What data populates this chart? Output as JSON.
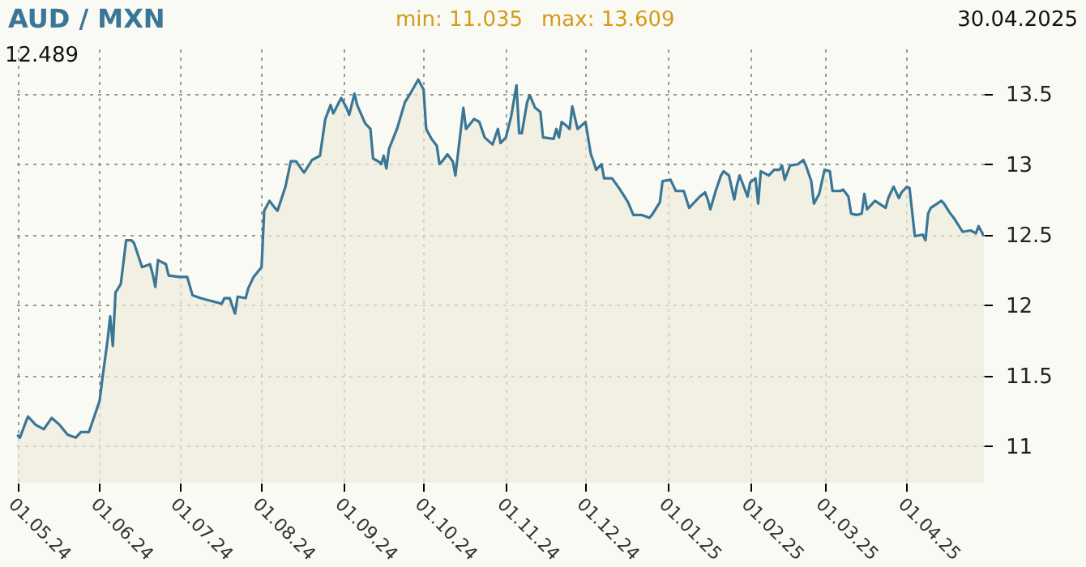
{
  "chart_data": {
    "type": "area",
    "title": "AUD / MXN",
    "annotations": [
      "min: 11.035",
      "max: 13.609",
      "30.04.2025",
      "12.489"
    ],
    "x": [
      "2024-05-01",
      "2024-05-02",
      "2024-05-05",
      "2024-05-08",
      "2024-05-11",
      "2024-05-14",
      "2024-05-17",
      "2024-05-20",
      "2024-05-23",
      "2024-05-25",
      "2024-05-28",
      "2024-05-30",
      "2024-06-01",
      "2024-06-02",
      "2024-06-04",
      "2024-06-05",
      "2024-06-06",
      "2024-06-07",
      "2024-06-09",
      "2024-06-11",
      "2024-06-13",
      "2024-06-14",
      "2024-06-17",
      "2024-06-20",
      "2024-06-21",
      "2024-06-22",
      "2024-06-23",
      "2024-06-26",
      "2024-06-27",
      "2024-07-01",
      "2024-07-04",
      "2024-07-06",
      "2024-07-09",
      "2024-07-13",
      "2024-07-17",
      "2024-07-18",
      "2024-07-20",
      "2024-07-22",
      "2024-07-23",
      "2024-07-26",
      "2024-07-27",
      "2024-07-29",
      "2024-08-01",
      "2024-08-02",
      "2024-08-04",
      "2024-08-06",
      "2024-08-07",
      "2024-08-10",
      "2024-08-12",
      "2024-08-14",
      "2024-08-17",
      "2024-08-20",
      "2024-08-23",
      "2024-08-25",
      "2024-08-27",
      "2024-08-28",
      "2024-08-31",
      "2024-09-02",
      "2024-09-03",
      "2024-09-05",
      "2024-09-06",
      "2024-09-09",
      "2024-09-11",
      "2024-09-12",
      "2024-09-14",
      "2024-09-15",
      "2024-09-16",
      "2024-09-17",
      "2024-09-18",
      "2024-09-21",
      "2024-09-24",
      "2024-09-26",
      "2024-09-29",
      "2024-10-01",
      "2024-10-02",
      "2024-10-04",
      "2024-10-06",
      "2024-10-07",
      "2024-10-08",
      "2024-10-10",
      "2024-10-12",
      "2024-10-13",
      "2024-10-16",
      "2024-10-17",
      "2024-10-20",
      "2024-10-22",
      "2024-10-24",
      "2024-10-27",
      "2024-10-29",
      "2024-10-30",
      "2024-11-01",
      "2024-11-03",
      "2024-11-05",
      "2024-11-06",
      "2024-11-07",
      "2024-11-09",
      "2024-11-10",
      "2024-11-12",
      "2024-11-14",
      "2024-11-15",
      "2024-11-19",
      "2024-11-20",
      "2024-11-21",
      "2024-11-22",
      "2024-11-24",
      "2024-11-25",
      "2024-11-26",
      "2024-11-28",
      "2024-12-01",
      "2024-12-03",
      "2024-12-04",
      "2024-12-05",
      "2024-12-07",
      "2024-12-08",
      "2024-12-11",
      "2024-12-14",
      "2024-12-17",
      "2024-12-19",
      "2024-12-22",
      "2024-12-25",
      "2024-12-26",
      "2024-12-29",
      "2024-12-30",
      "2025-01-02",
      "2025-01-04",
      "2025-01-07",
      "2025-01-09",
      "2025-01-13",
      "2025-01-15",
      "2025-01-16",
      "2025-01-17",
      "2025-01-19",
      "2025-01-21",
      "2025-01-22",
      "2025-01-24",
      "2025-01-26",
      "2025-01-27",
      "2025-01-28",
      "2025-01-31",
      "2025-02-01",
      "2025-02-03",
      "2025-02-04",
      "2025-02-05",
      "2025-02-08",
      "2025-02-10",
      "2025-02-12",
      "2025-02-13",
      "2025-02-14",
      "2025-02-16",
      "2025-02-19",
      "2025-02-21",
      "2025-02-22",
      "2025-02-24",
      "2025-02-25",
      "2025-02-27",
      "2025-03-01",
      "2025-03-03",
      "2025-03-04",
      "2025-03-07",
      "2025-03-08",
      "2025-03-10",
      "2025-03-11",
      "2025-03-13",
      "2025-03-15",
      "2025-03-16",
      "2025-03-17",
      "2025-03-20",
      "2025-03-24",
      "2025-03-25",
      "2025-03-27",
      "2025-03-29",
      "2025-03-30",
      "2025-04-01",
      "2025-04-02",
      "2025-04-04",
      "2025-04-07",
      "2025-04-08",
      "2025-04-09",
      "2025-04-10",
      "2025-04-14",
      "2025-04-15",
      "2025-04-17",
      "2025-04-19",
      "2025-04-22",
      "2025-04-25",
      "2025-04-27",
      "2025-04-28",
      "2025-04-30"
    ],
    "series": [
      {
        "color": "#3a7696",
        "values": [
          11.08,
          11.06,
          11.21,
          11.15,
          11.12,
          11.2,
          11.15,
          11.08,
          11.06,
          11.1,
          11.1,
          11.21,
          11.32,
          11.47,
          11.75,
          11.92,
          11.71,
          12.09,
          12.15,
          12.46,
          12.46,
          12.44,
          12.27,
          12.29,
          12.22,
          12.13,
          12.32,
          12.29,
          12.21,
          12.2,
          12.2,
          12.07,
          12.05,
          12.03,
          12.01,
          12.05,
          12.05,
          11.94,
          12.06,
          12.05,
          12.12,
          12.2,
          12.27,
          12.67,
          12.74,
          12.69,
          12.67,
          12.84,
          13.02,
          13.02,
          12.94,
          13.03,
          13.06,
          13.32,
          13.42,
          13.36,
          13.47,
          13.4,
          13.35,
          13.5,
          13.42,
          13.29,
          13.25,
          13.04,
          13.02,
          13.0,
          13.06,
          12.97,
          13.11,
          13.25,
          13.44,
          13.5,
          13.6,
          13.53,
          13.25,
          13.18,
          13.13,
          13.0,
          13.02,
          13.07,
          13.02,
          12.92,
          13.4,
          13.25,
          13.32,
          13.3,
          13.19,
          13.14,
          13.25,
          13.15,
          13.19,
          13.34,
          13.56,
          13.22,
          13.22,
          13.44,
          13.49,
          13.4,
          13.37,
          13.19,
          13.18,
          13.25,
          13.19,
          13.3,
          13.27,
          13.25,
          13.41,
          13.25,
          13.3,
          13.07,
          13.02,
          12.96,
          13.0,
          12.9,
          12.9,
          12.82,
          12.73,
          12.64,
          12.64,
          12.62,
          12.64,
          12.73,
          12.88,
          12.89,
          12.81,
          12.81,
          12.69,
          12.77,
          12.8,
          12.75,
          12.68,
          12.81,
          12.92,
          12.95,
          12.92,
          12.75,
          12.85,
          12.92,
          12.77,
          12.87,
          12.9,
          12.72,
          12.95,
          12.92,
          12.96,
          12.96,
          12.99,
          12.89,
          12.99,
          13.0,
          13.03,
          12.99,
          12.88,
          12.72,
          12.79,
          12.96,
          12.95,
          12.81,
          12.81,
          12.82,
          12.77,
          12.65,
          12.64,
          12.65,
          12.79,
          12.68,
          12.74,
          12.69,
          12.76,
          12.84,
          12.76,
          12.8,
          12.84,
          12.83,
          12.49,
          12.5,
          12.46,
          12.65,
          12.69,
          12.74,
          12.72,
          12.66,
          12.61,
          12.52,
          12.53,
          12.51,
          12.56,
          12.49
        ]
      }
    ],
    "xlim": [
      "2024-04-30",
      "2025-04-30"
    ],
    "xticks": [
      {
        "value": "2024-05-01",
        "label": "01.05.24"
      },
      {
        "value": "2024-06-01",
        "label": "01.06.24"
      },
      {
        "value": "2024-07-01",
        "label": "01.07.24"
      },
      {
        "value": "2024-08-01",
        "label": "01.08.24"
      },
      {
        "value": "2024-09-01",
        "label": "01.09.24"
      },
      {
        "value": "2024-10-01",
        "label": "01.10.24"
      },
      {
        "value": "2024-11-01",
        "label": "01.11.24"
      },
      {
        "value": "2024-12-01",
        "label": "01.12.24"
      },
      {
        "value": "2025-01-01",
        "label": "01.01.25"
      },
      {
        "value": "2025-02-01",
        "label": "01.02.25"
      },
      {
        "value": "2025-03-01",
        "label": "01.03.25"
      },
      {
        "value": "2025-04-01",
        "label": "01.04.25"
      }
    ],
    "ylim": [
      10.74,
      13.82
    ],
    "yticks": [
      11,
      11.5,
      12,
      12.5,
      13,
      13.5
    ],
    "grid": true
  }
}
